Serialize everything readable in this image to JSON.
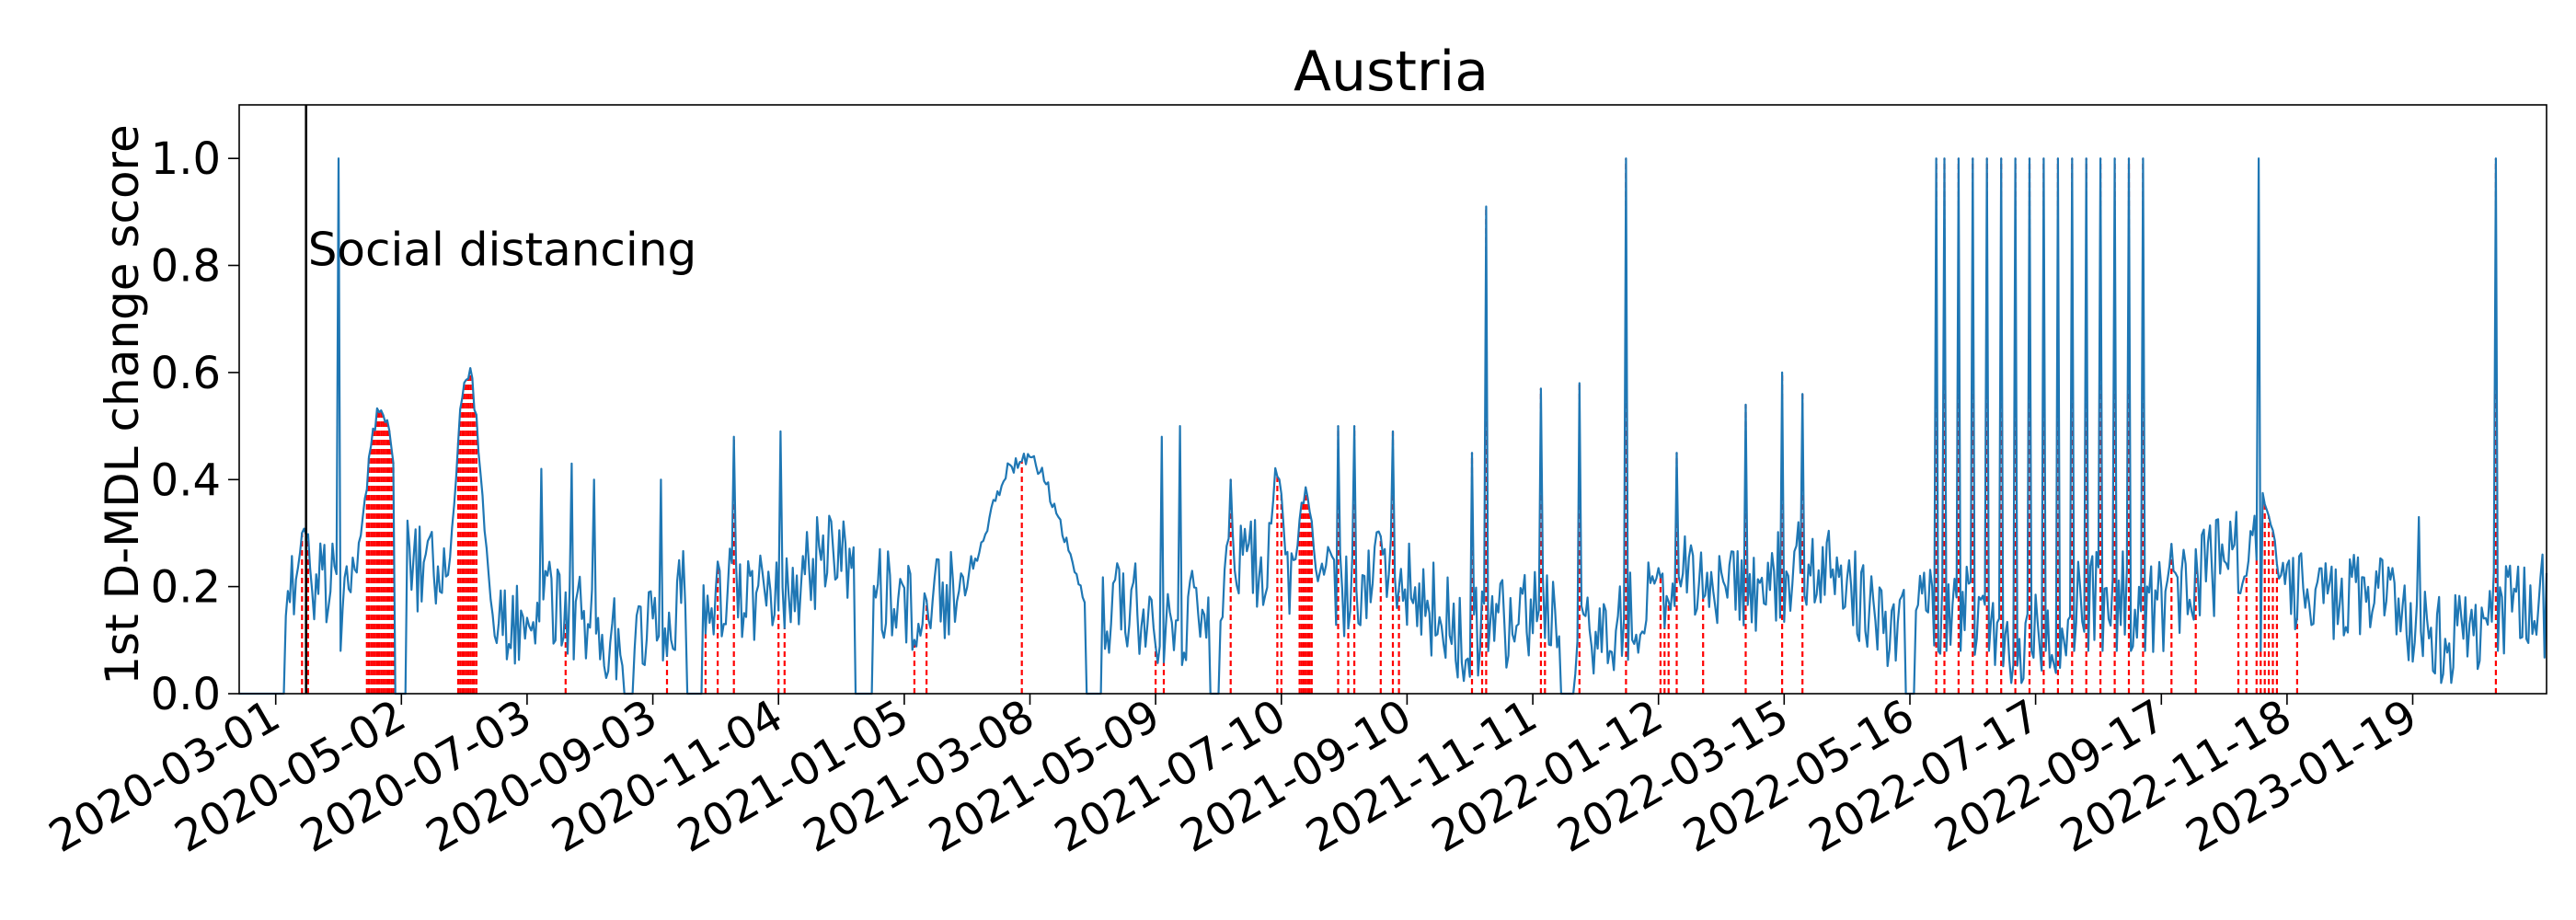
{
  "chart_data": {
    "type": "line",
    "title": "Austria",
    "xlabel": "",
    "ylabel": "1st D-MDL change score",
    "x_tick_labels": [
      "2020-03-01",
      "2020-05-02",
      "2020-07-03",
      "2020-09-03",
      "2020-11-04",
      "2021-01-05",
      "2021-03-08",
      "2021-05-09",
      "2021-07-10",
      "2021-09-10",
      "2021-11-11",
      "2022-01-12",
      "2022-03-15",
      "2022-05-16",
      "2022-07-17",
      "2022-09-17",
      "2022-11-18",
      "2023-01-19"
    ],
    "y_ticks": [
      0.0,
      0.2,
      0.4,
      0.6,
      0.8,
      1.0
    ],
    "y_tick_labels": [
      "0.0",
      "0.2",
      "0.4",
      "0.6",
      "0.8",
      "1.0"
    ],
    "xlim": [
      "2020-02-12",
      "2023-03-26"
    ],
    "ylim": [
      0.0,
      1.1
    ],
    "grid": false,
    "colors": {
      "line": "#1f77b4",
      "alarm": "#ff0000",
      "event": "#000000"
    },
    "annotation": {
      "date": "2020-03-16",
      "text": "Social distancing"
    },
    "spike_dates": [
      "2020-04-01",
      "2021-10-19",
      "2021-12-27",
      "2022-05-29",
      "2022-06-02",
      "2022-06-09",
      "2022-06-16",
      "2022-06-23",
      "2022-06-30",
      "2022-07-07",
      "2022-07-14",
      "2022-07-21",
      "2022-07-28",
      "2022-08-04",
      "2022-08-11",
      "2022-08-18",
      "2022-08-25",
      "2022-09-01",
      "2022-09-08",
      "2022-11-04",
      "2023-03-01"
    ],
    "spike_values": [
      1.0,
      0.91,
      1.0,
      1.0,
      1.0,
      1.0,
      1.0,
      1.0,
      1.0,
      1.0,
      1.0,
      1.0,
      1.0,
      1.0,
      1.0,
      1.0,
      1.0,
      1.0,
      1.0,
      1.0,
      1.0
    ],
    "alarm_dates": [
      "2020-03-14",
      "2020-03-17",
      "2020-04-15",
      "2020-04-16",
      "2020-04-17",
      "2020-04-18",
      "2020-04-19",
      "2020-04-20",
      "2020-04-21",
      "2020-04-22",
      "2020-04-23",
      "2020-04-24",
      "2020-04-25",
      "2020-04-26",
      "2020-04-27",
      "2020-04-28",
      "2020-05-30",
      "2020-05-31",
      "2020-06-01",
      "2020-06-02",
      "2020-06-03",
      "2020-06-04",
      "2020-06-05",
      "2020-06-06",
      "2020-06-07",
      "2020-06-08",
      "2020-07-22",
      "2020-09-10",
      "2020-09-29",
      "2020-10-05",
      "2020-10-13",
      "2020-11-04",
      "2020-11-07",
      "2021-01-10",
      "2021-01-16",
      "2021-03-04",
      "2021-04-05",
      "2021-05-09",
      "2021-05-13",
      "2021-06-15",
      "2021-07-08",
      "2021-07-10",
      "2021-07-19",
      "2021-07-20",
      "2021-07-21",
      "2021-07-22",
      "2021-07-23",
      "2021-07-24",
      "2021-07-25",
      "2021-08-07",
      "2021-08-12",
      "2021-08-15",
      "2021-08-28",
      "2021-09-03",
      "2021-09-06",
      "2021-10-12",
      "2021-10-17",
      "2021-10-19",
      "2021-11-15",
      "2021-11-17",
      "2021-11-29",
      "2021-12-04",
      "2021-12-27",
      "2022-01-13",
      "2022-01-15",
      "2022-01-17",
      "2022-01-21",
      "2022-02-03",
      "2022-02-24",
      "2022-03-14",
      "2022-03-24",
      "2022-05-29",
      "2022-06-02",
      "2022-06-09",
      "2022-06-16",
      "2022-06-23",
      "2022-06-30",
      "2022-07-07",
      "2022-07-14",
      "2022-07-21",
      "2022-07-28",
      "2022-08-04",
      "2022-08-11",
      "2022-08-18",
      "2022-08-25",
      "2022-09-01",
      "2022-09-08",
      "2022-09-22",
      "2022-10-04",
      "2022-10-25",
      "2022-10-29",
      "2022-11-03",
      "2022-11-05",
      "2022-11-07",
      "2022-11-09",
      "2022-11-11",
      "2022-11-13",
      "2022-11-23",
      "2023-03-01"
    ],
    "bumps": [
      {
        "center": "2020-03-15",
        "peak": 0.32,
        "width": 4
      },
      {
        "center": "2020-04-22",
        "peak": 0.56,
        "width": 9
      },
      {
        "center": "2020-06-04",
        "peak": 0.63,
        "width": 7
      },
      {
        "center": "2021-03-05",
        "peak": 0.46,
        "width": 22
      },
      {
        "center": "2021-07-08",
        "peak": 0.44,
        "width": 4
      },
      {
        "center": "2021-07-22",
        "peak": 0.39,
        "width": 5
      },
      {
        "center": "2022-11-06",
        "peak": 0.38,
        "width": 8
      }
    ],
    "noise_peaks": [
      {
        "date": "2020-07-10",
        "value": 0.42
      },
      {
        "date": "2020-07-25",
        "value": 0.43
      },
      {
        "date": "2020-08-05",
        "value": 0.4
      },
      {
        "date": "2020-09-07",
        "value": 0.4
      },
      {
        "date": "2020-10-13",
        "value": 0.48
      },
      {
        "date": "2020-11-05",
        "value": 0.49
      },
      {
        "date": "2021-05-12",
        "value": 0.48
      },
      {
        "date": "2021-05-21",
        "value": 0.5
      },
      {
        "date": "2021-06-15",
        "value": 0.4
      },
      {
        "date": "2021-08-07",
        "value": 0.5
      },
      {
        "date": "2021-08-15",
        "value": 0.5
      },
      {
        "date": "2021-09-03",
        "value": 0.49
      },
      {
        "date": "2021-10-12",
        "value": 0.45
      },
      {
        "date": "2021-11-15",
        "value": 0.57
      },
      {
        "date": "2021-12-04",
        "value": 0.58
      },
      {
        "date": "2022-01-21",
        "value": 0.45
      },
      {
        "date": "2022-02-24",
        "value": 0.54
      },
      {
        "date": "2022-03-14",
        "value": 0.6
      },
      {
        "date": "2022-03-24",
        "value": 0.56
      },
      {
        "date": "2022-09-22",
        "value": 0.28
      },
      {
        "date": "2022-10-04",
        "value": 0.27
      },
      {
        "date": "2023-01-22",
        "value": 0.33
      },
      {
        "date": "2023-03-24",
        "value": 0.26
      }
    ],
    "zero_spans": [
      [
        "2020-02-12",
        "2020-03-05"
      ],
      [
        "2020-04-29",
        "2020-05-04"
      ],
      [
        "2020-08-20",
        "2020-08-24"
      ],
      [
        "2020-09-20",
        "2020-09-27"
      ],
      [
        "2020-12-12",
        "2020-12-20"
      ],
      [
        "2021-04-05",
        "2021-04-12"
      ],
      [
        "2021-06-05",
        "2021-06-09"
      ],
      [
        "2021-11-25",
        "2021-12-01"
      ],
      [
        "2022-05-14",
        "2022-05-18"
      ]
    ]
  }
}
